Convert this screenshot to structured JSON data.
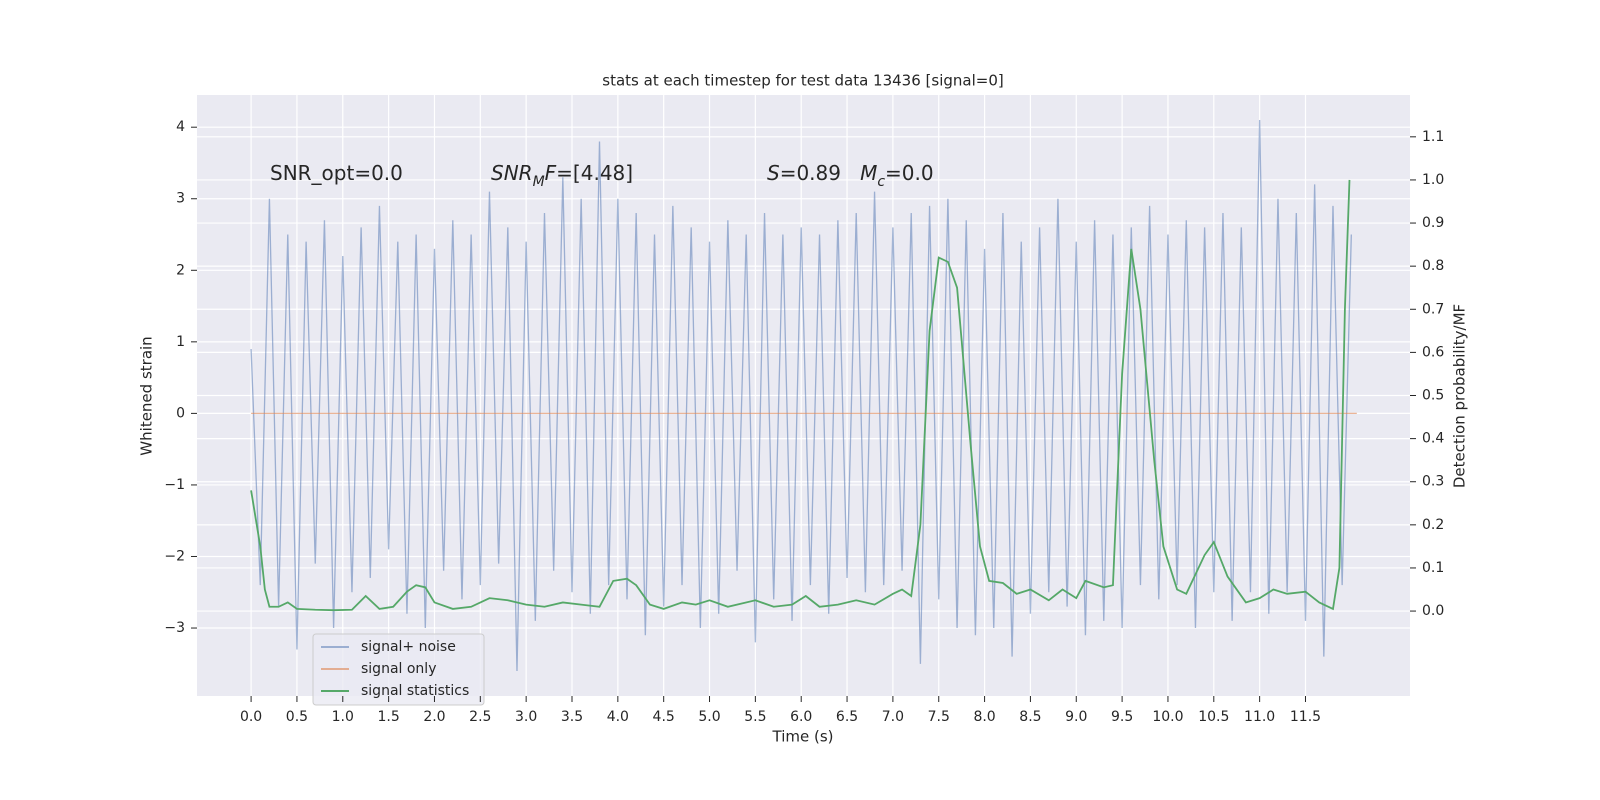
{
  "chart_data": {
    "type": "line",
    "title": "stats at each timestep for test data 13436 [signal=0]",
    "xlabel": "Time (s)",
    "ylabel": "Whitened strain",
    "y2label": "Detection probability/MF",
    "xlim": [
      -0.59,
      12.64
    ],
    "ylim": [
      -3.95,
      4.45
    ],
    "y2lim": [
      -0.197,
      1.197
    ],
    "xticks": [
      {
        "value": 0,
        "label": "0.0"
      },
      0.5,
      {
        "value": 1,
        "label": "1.0"
      },
      1.5,
      {
        "value": 2,
        "label": "2.0"
      },
      2.5,
      {
        "value": 3,
        "label": "3.0"
      },
      3.5,
      {
        "value": 4,
        "label": "4.0"
      },
      4.5,
      {
        "value": 5,
        "label": "5.0"
      },
      5.5,
      {
        "value": 6,
        "label": "6.0"
      },
      6.5,
      {
        "value": 7,
        "label": "7.0"
      },
      7.5,
      {
        "value": 8,
        "label": "8.0"
      },
      8.5,
      {
        "value": 9,
        "label": "9.0"
      },
      9.5,
      {
        "value": 10,
        "label": "10.0"
      },
      10.5,
      {
        "value": 11,
        "label": "11.0"
      },
      11.5
    ],
    "yticks": [
      -3,
      -2,
      -1,
      0,
      1,
      2,
      3,
      4
    ],
    "y2ticks": [
      {
        "value": 0,
        "label": "0.0"
      },
      0.1,
      0.2,
      0.3,
      0.4,
      0.5,
      0.6,
      0.7,
      0.8,
      0.9,
      {
        "value": 1,
        "label": "1.0"
      },
      1.1
    ],
    "grid": true,
    "legend": "lower left",
    "annotations": [
      {
        "parts": [
          {
            "text": "SNR_opt=0.0"
          }
        ]
      },
      {
        "parts": [
          {
            "text": "SNR",
            "italic": true
          },
          {
            "text": "M",
            "italic": true,
            "sub": true
          },
          {
            "text": "F",
            "italic": true
          },
          {
            "text": "=[4.48]"
          }
        ]
      },
      {
        "parts": [
          {
            "text": "S",
            "italic": true
          },
          {
            "text": "=0.89   "
          },
          {
            "text": "M",
            "italic": true
          },
          {
            "text": "c",
            "italic": true,
            "sub": true
          },
          {
            "text": "=0.0"
          }
        ]
      }
    ],
    "series": [
      {
        "name": "signal+ noise",
        "color": "#4c72b0",
        "opacity": 0.5,
        "x": [
          0.0,
          0.1,
          0.2,
          0.3,
          0.4,
          0.5,
          0.6,
          0.7,
          0.8,
          0.9,
          1.0,
          1.1,
          1.2,
          1.3,
          1.4,
          1.5,
          1.6,
          1.7,
          1.8,
          1.9,
          2.0,
          2.1,
          2.2,
          2.3,
          2.4,
          2.5,
          2.6,
          2.7,
          2.8,
          2.9,
          3.0,
          3.1,
          3.2,
          3.3,
          3.4,
          3.5,
          3.6,
          3.7,
          3.8,
          3.9,
          4.0,
          4.1,
          4.2,
          4.3,
          4.4,
          4.5,
          4.6,
          4.7,
          4.8,
          4.9,
          5.0,
          5.1,
          5.2,
          5.3,
          5.4,
          5.5,
          5.6,
          5.7,
          5.8,
          5.9,
          6.0,
          6.1,
          6.2,
          6.3,
          6.4,
          6.5,
          6.6,
          6.7,
          6.8,
          6.9,
          7.0,
          7.1,
          7.2,
          7.3,
          7.4,
          7.5,
          7.6,
          7.7,
          7.8,
          7.9,
          8.0,
          8.1,
          8.2,
          8.3,
          8.4,
          8.5,
          8.6,
          8.7,
          8.8,
          8.9,
          9.0,
          9.1,
          9.2,
          9.3,
          9.4,
          9.5,
          9.6,
          9.7,
          9.8,
          9.9,
          10.0,
          10.1,
          10.2,
          10.3,
          10.4,
          10.5,
          10.6,
          10.7,
          10.8,
          10.9,
          11.0,
          11.1,
          11.2,
          11.3,
          11.4,
          11.5,
          11.6,
          11.7,
          11.8,
          11.9,
          12.0
        ],
        "values": [
          0.9,
          -2.4,
          3.0,
          -2.7,
          2.5,
          -3.3,
          2.4,
          -2.1,
          2.7,
          -3.0,
          2.2,
          -2.5,
          2.6,
          -2.3,
          2.9,
          -1.9,
          2.4,
          -2.8,
          2.5,
          -3.0,
          2.3,
          -2.2,
          2.7,
          -2.6,
          2.5,
          -2.4,
          3.1,
          -2.1,
          2.6,
          -3.6,
          2.4,
          -2.9,
          2.8,
          -2.2,
          3.3,
          -2.5,
          3.0,
          -2.8,
          3.8,
          -2.4,
          3.0,
          -2.6,
          2.8,
          -3.1,
          2.5,
          -2.7,
          2.9,
          -2.4,
          2.6,
          -3.0,
          2.4,
          -2.8,
          2.7,
          -2.2,
          2.5,
          -3.2,
          2.8,
          -2.6,
          2.5,
          -2.9,
          2.6,
          -2.4,
          2.5,
          -2.8,
          2.7,
          -2.3,
          2.8,
          -2.5,
          3.1,
          -2.4,
          2.6,
          -2.2,
          2.8,
          -3.5,
          2.9,
          -2.6,
          3.0,
          -3.0,
          2.7,
          -3.1,
          2.3,
          -3.0,
          2.8,
          -3.4,
          2.4,
          -2.8,
          2.6,
          -2.5,
          3.0,
          -2.7,
          2.4,
          -3.1,
          2.7,
          -2.9,
          2.5,
          -3.0,
          2.6,
          -2.4,
          2.9,
          -2.6,
          2.5,
          -2.4,
          2.7,
          -3.0,
          2.6,
          -2.5,
          2.8,
          -2.9,
          2.6,
          -2.5,
          4.1,
          -2.8,
          3.0,
          -2.5,
          2.8,
          -2.9,
          3.2,
          -3.4,
          2.9,
          -2.4,
          2.5
        ]
      },
      {
        "name": "signal only",
        "color": "#dd8452",
        "opacity": 0.6,
        "x": [
          0.0,
          12.06
        ],
        "values": [
          0,
          0
        ]
      },
      {
        "name": "signal statistics",
        "color": "#55a868",
        "opacity": 1,
        "axis": "y2",
        "x": [
          0.0,
          0.1,
          0.15,
          0.2,
          0.3,
          0.4,
          0.5,
          0.7,
          0.9,
          1.1,
          1.25,
          1.4,
          1.55,
          1.7,
          1.8,
          1.9,
          2.0,
          2.2,
          2.4,
          2.6,
          2.8,
          3.0,
          3.2,
          3.4,
          3.6,
          3.8,
          3.95,
          4.1,
          4.2,
          4.35,
          4.5,
          4.7,
          4.85,
          5.0,
          5.2,
          5.5,
          5.7,
          5.9,
          6.05,
          6.2,
          6.4,
          6.6,
          6.8,
          7.0,
          7.1,
          7.2,
          7.3,
          7.4,
          7.5,
          7.6,
          7.7,
          7.85,
          7.95,
          8.05,
          8.2,
          8.35,
          8.5,
          8.7,
          8.85,
          9.0,
          9.1,
          9.3,
          9.4,
          9.5,
          9.6,
          9.7,
          9.85,
          9.95,
          10.1,
          10.2,
          10.4,
          10.5,
          10.65,
          10.85,
          11.0,
          11.15,
          11.3,
          11.5,
          11.65,
          11.8,
          11.87,
          11.93,
          11.98
        ],
        "values": [
          0.28,
          0.15,
          0.05,
          0.01,
          0.01,
          0.02,
          0.005,
          0.003,
          0.002,
          0.003,
          0.035,
          0.005,
          0.01,
          0.045,
          0.06,
          0.055,
          0.02,
          0.005,
          0.01,
          0.03,
          0.025,
          0.015,
          0.01,
          0.02,
          0.015,
          0.01,
          0.07,
          0.075,
          0.06,
          0.015,
          0.005,
          0.02,
          0.015,
          0.025,
          0.01,
          0.025,
          0.01,
          0.015,
          0.035,
          0.01,
          0.015,
          0.025,
          0.015,
          0.04,
          0.05,
          0.035,
          0.2,
          0.65,
          0.82,
          0.81,
          0.75,
          0.38,
          0.15,
          0.07,
          0.065,
          0.04,
          0.05,
          0.025,
          0.05,
          0.03,
          0.07,
          0.055,
          0.06,
          0.55,
          0.84,
          0.7,
          0.35,
          0.15,
          0.05,
          0.04,
          0.13,
          0.16,
          0.08,
          0.02,
          0.03,
          0.05,
          0.04,
          0.045,
          0.02,
          0.005,
          0.1,
          0.7,
          1.0
        ]
      }
    ]
  }
}
